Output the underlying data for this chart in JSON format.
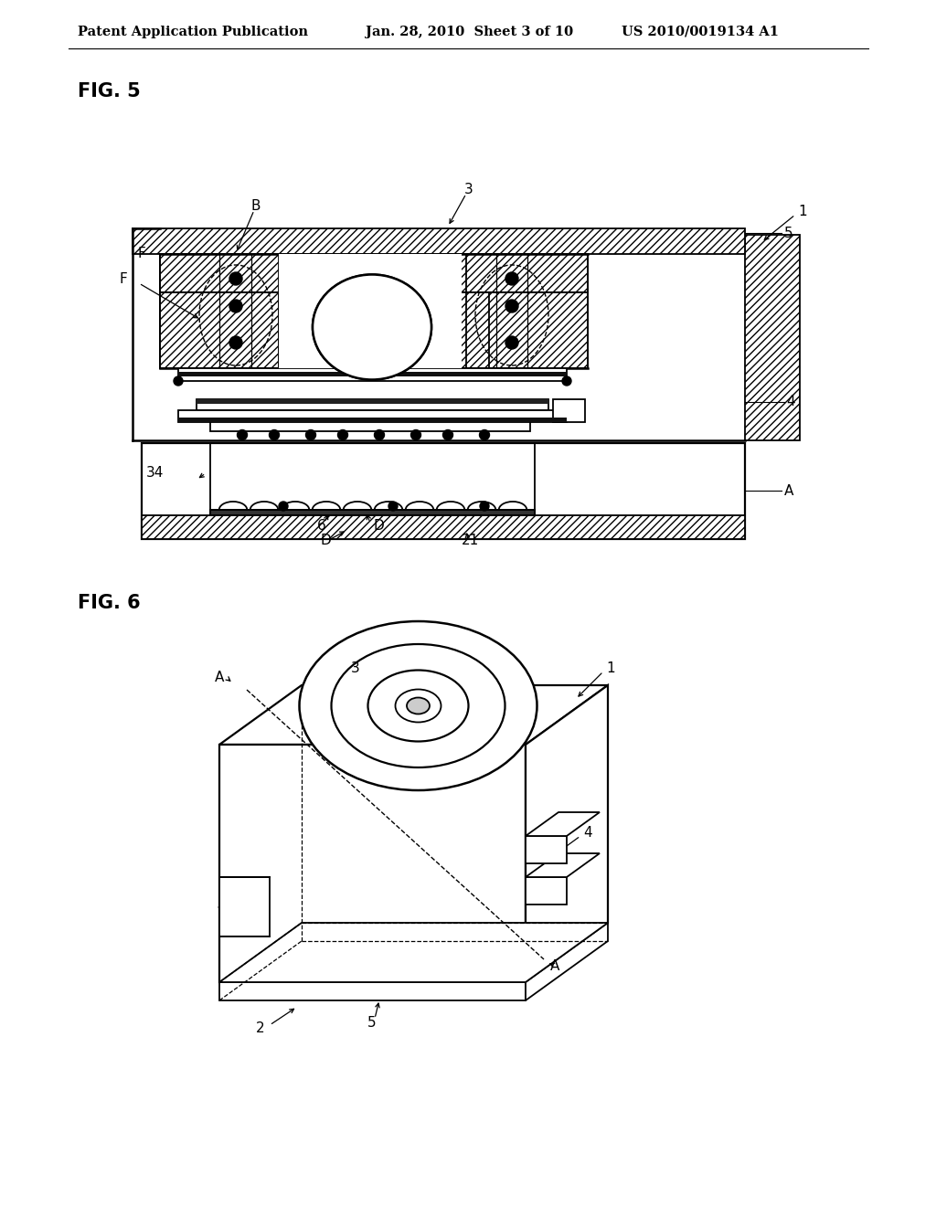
{
  "header_left": "Patent Application Publication",
  "header_mid": "Jan. 28, 2010  Sheet 3 of 10",
  "header_right": "US 2010/0019134 A1",
  "fig5_label": "FIG. 5",
  "fig6_label": "FIG. 6",
  "bg_color": "#ffffff",
  "line_color": "#000000",
  "header_fontsize": 10.5,
  "label_fontsize": 15
}
